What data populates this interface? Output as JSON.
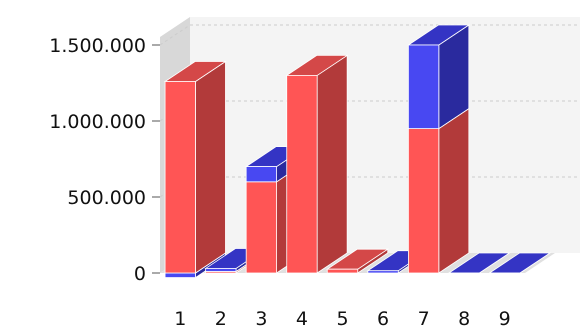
{
  "chart_data": {
    "type": "bar",
    "stacked": true,
    "three_d": true,
    "categories": [
      "1",
      "2",
      "3",
      "4",
      "5",
      "6",
      "7",
      "8",
      "9"
    ],
    "series": [
      {
        "color": "#ff5555",
        "values": [
          1260000,
          10000,
          600000,
          1300000,
          25000,
          0,
          950000,
          0,
          0
        ]
      },
      {
        "color": "#4848f2",
        "values": [
          -30000,
          20000,
          100000,
          0,
          0,
          15000,
          550000,
          0,
          0
        ]
      }
    ],
    "ylim": [
      0,
      1500000
    ],
    "y_ticks": [
      {
        "value": 0,
        "label": "0"
      },
      {
        "value": 500000,
        "label": "500.000"
      },
      {
        "value": 1000000,
        "label": "1.000.000"
      },
      {
        "value": 1500000,
        "label": "1.500.000"
      }
    ],
    "grid": true,
    "legend": "none",
    "colors": {
      "series_1_front": "#ff5555",
      "series_1_side": "#b23a3a",
      "series_1_top": "#d44848",
      "series_2_front": "#4848f2",
      "series_2_side": "#2a2a9e",
      "series_2_top": "#3434c4",
      "back_wall": "#f4f4f4",
      "side_wall": "#d8d8d8",
      "floor": "#e0e0e0",
      "grid": "#cccccc"
    }
  }
}
